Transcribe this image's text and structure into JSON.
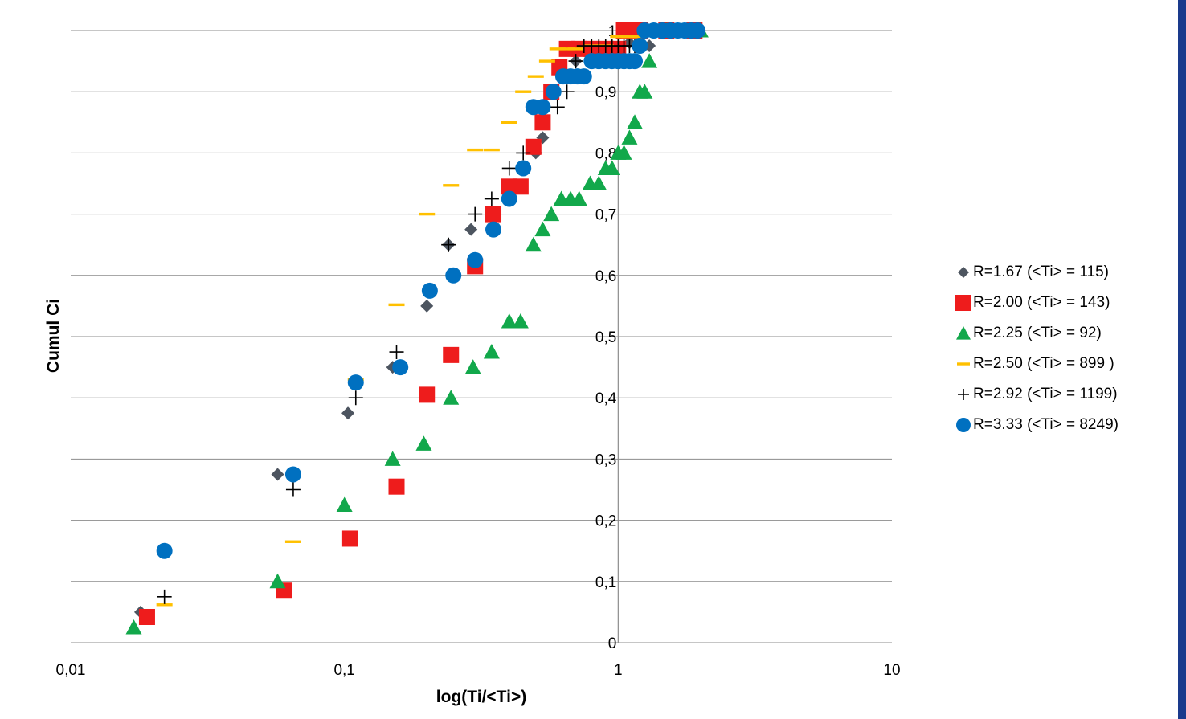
{
  "colors": {
    "grid": "#8c8c8c",
    "axis": "#8c8c8c",
    "edge_bar": "#1a3a8c"
  },
  "chart_data": {
    "type": "scatter",
    "title": "",
    "xlabel": "log(Ti/<Ti>)",
    "ylabel": "Cumul Ci",
    "x_scale": "log",
    "xlim": [
      0.01,
      10
    ],
    "ylim": [
      0,
      1
    ],
    "x_ticks": [
      0.01,
      0.1,
      1,
      10
    ],
    "x_tick_labels": [
      "0,01",
      "0,1",
      "1",
      "10"
    ],
    "y_ticks": [
      0,
      0.1,
      0.2,
      0.3,
      0.4,
      0.5,
      0.6,
      0.7,
      0.8,
      0.9,
      1
    ],
    "y_tick_labels": [
      "0",
      "0,1",
      "0,2",
      "0,3",
      "0,4",
      "0,5",
      "0,6",
      "0,7",
      "0,8",
      "0,9",
      "1"
    ],
    "grid": "horizontal",
    "legend_position": "right",
    "series": [
      {
        "name": "R=1.67 (<Ti> = 115)",
        "marker": "diamond",
        "color": "#4d5560",
        "points": [
          [
            0.018,
            0.05
          ],
          [
            0.057,
            0.275
          ],
          [
            0.103,
            0.375
          ],
          [
            0.15,
            0.45
          ],
          [
            0.2,
            0.55
          ],
          [
            0.24,
            0.65
          ],
          [
            0.29,
            0.675
          ],
          [
            0.5,
            0.8
          ],
          [
            0.53,
            0.825
          ],
          [
            0.7,
            0.95
          ],
          [
            0.8,
            0.96
          ],
          [
            1.0,
            0.97
          ],
          [
            1.1,
            0.98
          ],
          [
            1.3,
            0.975
          ],
          [
            1.5,
            1
          ],
          [
            1.8,
            1
          ]
        ]
      },
      {
        "name": "R=2.00 (<Ti> = 143)",
        "marker": "square",
        "color": "#ee1c1c",
        "points": [
          [
            0.019,
            0.042
          ],
          [
            0.06,
            0.085
          ],
          [
            0.105,
            0.17
          ],
          [
            0.155,
            0.255
          ],
          [
            0.2,
            0.405
          ],
          [
            0.245,
            0.47
          ],
          [
            0.3,
            0.615
          ],
          [
            0.35,
            0.7
          ],
          [
            0.4,
            0.745
          ],
          [
            0.44,
            0.745
          ],
          [
            0.49,
            0.81
          ],
          [
            0.53,
            0.85
          ],
          [
            0.57,
            0.9
          ],
          [
            0.61,
            0.94
          ],
          [
            0.65,
            0.97
          ],
          [
            0.72,
            0.97
          ],
          [
            0.8,
            0.97
          ],
          [
            0.9,
            0.97
          ],
          [
            1.0,
            0.97
          ],
          [
            1.05,
            1
          ],
          [
            1.2,
            1
          ],
          [
            1.5,
            1
          ],
          [
            1.9,
            1
          ]
        ]
      },
      {
        "name": "R=2.25 (<Ti> = 92)",
        "marker": "triangle",
        "color": "#12a84b",
        "points": [
          [
            0.017,
            0.025
          ],
          [
            0.057,
            0.1
          ],
          [
            0.1,
            0.225
          ],
          [
            0.15,
            0.3
          ],
          [
            0.195,
            0.325
          ],
          [
            0.245,
            0.4
          ],
          [
            0.295,
            0.45
          ],
          [
            0.345,
            0.475
          ],
          [
            0.4,
            0.525
          ],
          [
            0.44,
            0.525
          ],
          [
            0.49,
            0.65
          ],
          [
            0.53,
            0.675
          ],
          [
            0.57,
            0.7
          ],
          [
            0.62,
            0.725
          ],
          [
            0.67,
            0.725
          ],
          [
            0.72,
            0.725
          ],
          [
            0.79,
            0.75
          ],
          [
            0.85,
            0.75
          ],
          [
            0.9,
            0.775
          ],
          [
            0.95,
            0.775
          ],
          [
            1.0,
            0.8
          ],
          [
            1.05,
            0.8
          ],
          [
            1.1,
            0.825
          ],
          [
            1.15,
            0.85
          ],
          [
            1.2,
            0.9
          ],
          [
            1.25,
            0.9
          ],
          [
            1.3,
            0.95
          ],
          [
            1.5,
            1
          ],
          [
            2.0,
            1
          ]
        ]
      },
      {
        "name": "R=2.50 (<Ti> = 899 )",
        "marker": "dash",
        "color": "#ffc000",
        "points": [
          [
            0.022,
            0.062
          ],
          [
            0.065,
            0.165
          ],
          [
            0.11,
            0.43
          ],
          [
            0.155,
            0.552
          ],
          [
            0.2,
            0.7
          ],
          [
            0.245,
            0.747
          ],
          [
            0.3,
            0.805
          ],
          [
            0.345,
            0.805
          ],
          [
            0.4,
            0.85
          ],
          [
            0.45,
            0.9
          ],
          [
            0.5,
            0.925
          ],
          [
            0.55,
            0.95
          ],
          [
            0.6,
            0.97
          ],
          [
            0.65,
            0.97
          ],
          [
            0.7,
            0.97
          ],
          [
            0.8,
            0.975
          ],
          [
            0.9,
            0.975
          ],
          [
            1.0,
            0.99
          ],
          [
            1.1,
            0.99
          ],
          [
            1.2,
            0.99
          ],
          [
            1.4,
            1
          ],
          [
            1.7,
            1
          ]
        ]
      },
      {
        "name": "R=2.92 (<Ti> = 1199)",
        "marker": "plus",
        "color": "#000000",
        "points": [
          [
            0.022,
            0.075
          ],
          [
            0.065,
            0.25
          ],
          [
            0.11,
            0.4
          ],
          [
            0.155,
            0.475
          ],
          [
            0.24,
            0.65
          ],
          [
            0.3,
            0.7
          ],
          [
            0.345,
            0.725
          ],
          [
            0.4,
            0.775
          ],
          [
            0.45,
            0.8
          ],
          [
            0.6,
            0.875
          ],
          [
            0.65,
            0.9
          ],
          [
            0.7,
            0.95
          ],
          [
            0.75,
            0.975
          ],
          [
            0.8,
            0.975
          ],
          [
            0.85,
            0.975
          ],
          [
            0.9,
            0.975
          ],
          [
            0.95,
            0.975
          ],
          [
            1.0,
            0.975
          ],
          [
            1.05,
            0.975
          ],
          [
            1.1,
            0.975
          ],
          [
            1.15,
            0.975
          ]
        ]
      },
      {
        "name": "R=3.33 (<Ti> = 8249)",
        "marker": "circle",
        "color": "#0070c0",
        "points": [
          [
            0.022,
            0.15
          ],
          [
            0.065,
            0.275
          ],
          [
            0.11,
            0.425
          ],
          [
            0.16,
            0.45
          ],
          [
            0.205,
            0.575
          ],
          [
            0.25,
            0.6
          ],
          [
            0.3,
            0.625
          ],
          [
            0.35,
            0.675
          ],
          [
            0.4,
            0.725
          ],
          [
            0.45,
            0.775
          ],
          [
            0.49,
            0.875
          ],
          [
            0.53,
            0.875
          ],
          [
            0.58,
            0.9
          ],
          [
            0.63,
            0.925
          ],
          [
            0.67,
            0.925
          ],
          [
            0.71,
            0.925
          ],
          [
            0.75,
            0.925
          ],
          [
            0.8,
            0.95
          ],
          [
            0.85,
            0.95
          ],
          [
            0.9,
            0.95
          ],
          [
            0.95,
            0.95
          ],
          [
            1.0,
            0.95
          ],
          [
            1.05,
            0.95
          ],
          [
            1.1,
            0.95
          ],
          [
            1.15,
            0.95
          ],
          [
            1.2,
            0.975
          ],
          [
            1.25,
            1
          ],
          [
            1.35,
            1
          ],
          [
            1.45,
            1
          ],
          [
            1.55,
            1
          ],
          [
            1.65,
            1
          ],
          [
            1.75,
            1
          ],
          [
            1.85,
            1
          ],
          [
            1.95,
            1
          ]
        ]
      }
    ]
  }
}
